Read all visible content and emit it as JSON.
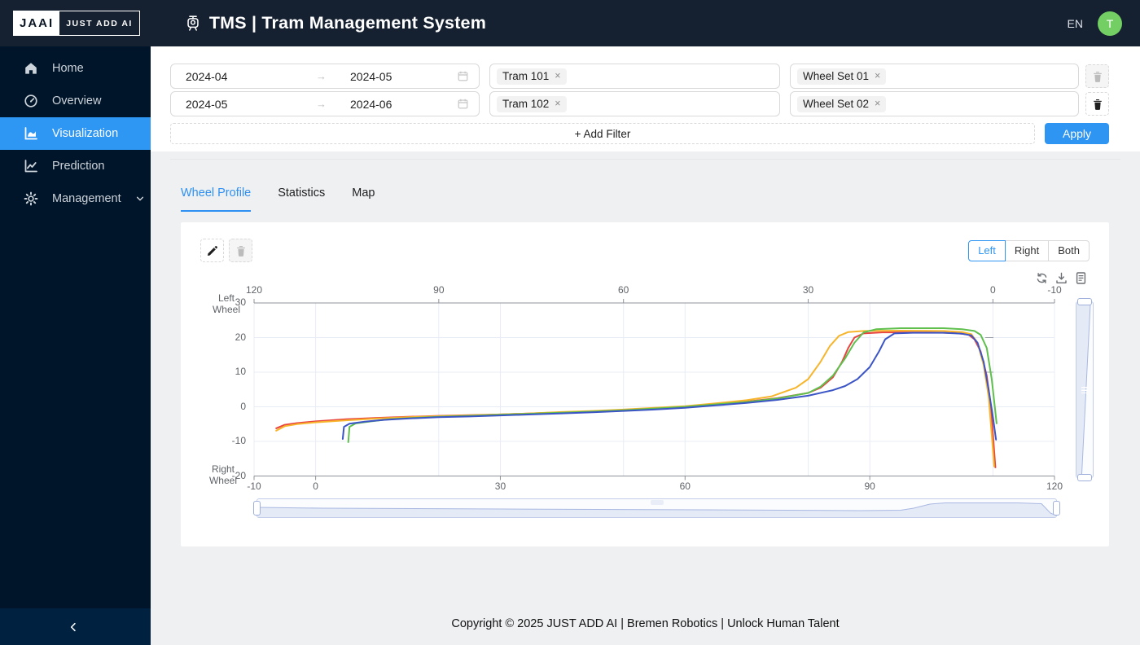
{
  "ui": {
    "close_glyph": "×",
    "range_arrow": "→"
  },
  "header": {
    "logo_primary": "JAAI",
    "logo_secondary": "JUST ADD AI",
    "title": "TMS | Tram Management System",
    "language": "EN",
    "avatar_initial": "T"
  },
  "sidebar": {
    "items": [
      {
        "label": "Home"
      },
      {
        "label": "Overview"
      },
      {
        "label": "Visualization",
        "active": true
      },
      {
        "label": "Prediction"
      },
      {
        "label": "Management",
        "has_submenu": true
      }
    ]
  },
  "filters": {
    "rows": [
      {
        "date_start": "2024-04",
        "date_end": "2024-05",
        "tram": "Tram 101",
        "wheel_set": "Wheel Set 01",
        "delete_enabled": false
      },
      {
        "date_start": "2024-05",
        "date_end": "2024-06",
        "tram": "Tram 102",
        "wheel_set": "Wheel Set 02",
        "delete_enabled": true
      }
    ],
    "add_filter": "+ Add Filter",
    "apply": "Apply"
  },
  "tabs": [
    {
      "label": "Wheel Profile",
      "active": true
    },
    {
      "label": "Statistics"
    },
    {
      "label": "Map"
    }
  ],
  "chart": {
    "side_options": [
      "Left",
      "Right",
      "Both"
    ],
    "selected_side": "Left",
    "left_wheel_label": "Left\nWheel",
    "right_wheel_label": "Right\nWheel",
    "accent_color": "#2e95f3"
  },
  "chart_data": {
    "type": "line",
    "title": "Wheel Profile",
    "grid": true,
    "x_axis_bottom": {
      "ticks": [
        -10,
        0,
        30,
        60,
        90,
        120
      ],
      "range": [
        -10,
        120
      ]
    },
    "x_axis_top": {
      "ticks": [
        120,
        90,
        60,
        30,
        0,
        -10
      ],
      "range": [
        120,
        -10
      ],
      "reversed": true
    },
    "y_axis": {
      "ticks": [
        30,
        20,
        10,
        0,
        -10,
        -20
      ],
      "range": [
        -20,
        30
      ]
    },
    "series": [
      {
        "name": "profile-red",
        "color": "#e8433f",
        "points": [
          [
            -6.4,
            -6.2
          ],
          [
            -5,
            -5.2
          ],
          [
            -3,
            -4.7
          ],
          [
            0,
            -4.2
          ],
          [
            5,
            -3.6
          ],
          [
            10,
            -3.2
          ],
          [
            15,
            -2.9
          ],
          [
            20,
            -2.6
          ],
          [
            25,
            -2.4
          ],
          [
            30,
            -2.2
          ],
          [
            35,
            -1.9
          ],
          [
            40,
            -1.6
          ],
          [
            45,
            -1.3
          ],
          [
            50,
            -0.9
          ],
          [
            55,
            -0.4
          ],
          [
            60,
            0.1
          ],
          [
            65,
            0.8
          ],
          [
            70,
            1.5
          ],
          [
            75,
            2.5
          ],
          [
            80,
            4.0
          ],
          [
            82,
            5.5
          ],
          [
            84,
            8.5
          ],
          [
            85.5,
            13
          ],
          [
            86.5,
            17
          ],
          [
            87.5,
            20
          ],
          [
            89,
            21.2
          ],
          [
            92,
            21.5
          ],
          [
            100,
            21.5
          ],
          [
            104,
            21.3
          ],
          [
            106,
            20.9
          ],
          [
            107,
            19.5
          ],
          [
            108,
            16
          ],
          [
            109,
            9
          ],
          [
            109.6,
            1
          ],
          [
            110,
            -8
          ],
          [
            110.4,
            -17.5
          ]
        ]
      },
      {
        "name": "profile-orange",
        "color": "#f7b52c",
        "points": [
          [
            -6.4,
            -6.9
          ],
          [
            -5,
            -5.6
          ],
          [
            -3,
            -5.0
          ],
          [
            0,
            -4.5
          ],
          [
            5,
            -3.9
          ],
          [
            10,
            -3.4
          ],
          [
            15,
            -3.0
          ],
          [
            20,
            -2.7
          ],
          [
            25,
            -2.5
          ],
          [
            30,
            -2.2
          ],
          [
            35,
            -1.9
          ],
          [
            40,
            -1.5
          ],
          [
            45,
            -1.2
          ],
          [
            50,
            -0.8
          ],
          [
            55,
            -0.3
          ],
          [
            60,
            0.2
          ],
          [
            65,
            1.0
          ],
          [
            70,
            1.9
          ],
          [
            74,
            3.0
          ],
          [
            78,
            5.5
          ],
          [
            80,
            8.0
          ],
          [
            82,
            13
          ],
          [
            83.5,
            17.5
          ],
          [
            85,
            20.5
          ],
          [
            86.5,
            21.6
          ],
          [
            89,
            21.9
          ],
          [
            95,
            22.0
          ],
          [
            102,
            21.9
          ],
          [
            105,
            21.6
          ],
          [
            106.5,
            21.0
          ],
          [
            107.5,
            18.5
          ],
          [
            108.5,
            12
          ],
          [
            109.3,
            3
          ],
          [
            109.8,
            -8
          ],
          [
            110.2,
            -17.2
          ]
        ]
      },
      {
        "name": "profile-green",
        "color": "#5fc04e",
        "points": [
          [
            5.3,
            -10.2
          ],
          [
            5.5,
            -5.8
          ],
          [
            6.5,
            -4.8
          ],
          [
            9,
            -4.2
          ],
          [
            12,
            -3.6
          ],
          [
            16,
            -3.2
          ],
          [
            20,
            -2.9
          ],
          [
            25,
            -2.6
          ],
          [
            30,
            -2.3
          ],
          [
            35,
            -2.0
          ],
          [
            40,
            -1.7
          ],
          [
            45,
            -1.4
          ],
          [
            50,
            -1.0
          ],
          [
            55,
            -0.5
          ],
          [
            60,
            0.0
          ],
          [
            65,
            0.7
          ],
          [
            70,
            1.4
          ],
          [
            75,
            2.4
          ],
          [
            80,
            4.0
          ],
          [
            82,
            5.8
          ],
          [
            84,
            9.0
          ],
          [
            86,
            14
          ],
          [
            87.5,
            18.5
          ],
          [
            89,
            21.5
          ],
          [
            91,
            22.4
          ],
          [
            95,
            22.7
          ],
          [
            102,
            22.7
          ],
          [
            105,
            22.4
          ],
          [
            107,
            21.9
          ],
          [
            108,
            20.8
          ],
          [
            109,
            17
          ],
          [
            109.8,
            8
          ],
          [
            110.3,
            0
          ],
          [
            110.6,
            -4.8
          ]
        ]
      },
      {
        "name": "profile-blue",
        "color": "#3c55c6",
        "points": [
          [
            4.4,
            -9.3
          ],
          [
            4.6,
            -5.8
          ],
          [
            5.5,
            -4.9
          ],
          [
            8,
            -4.3
          ],
          [
            11,
            -3.8
          ],
          [
            15,
            -3.4
          ],
          [
            20,
            -3.0
          ],
          [
            25,
            -2.8
          ],
          [
            30,
            -2.5
          ],
          [
            35,
            -2.2
          ],
          [
            40,
            -1.9
          ],
          [
            45,
            -1.6
          ],
          [
            50,
            -1.2
          ],
          [
            55,
            -0.8
          ],
          [
            60,
            -0.3
          ],
          [
            65,
            0.4
          ],
          [
            70,
            1.1
          ],
          [
            75,
            2.0
          ],
          [
            80,
            3.2
          ],
          [
            84,
            4.8
          ],
          [
            86,
            6.0
          ],
          [
            88,
            8.0
          ],
          [
            90,
            11.5
          ],
          [
            91.5,
            16
          ],
          [
            92.5,
            19.5
          ],
          [
            94,
            21.2
          ],
          [
            97,
            21.4
          ],
          [
            102,
            21.4
          ],
          [
            105,
            21.1
          ],
          [
            106.5,
            20.6
          ],
          [
            107.5,
            18.5
          ],
          [
            108.5,
            13
          ],
          [
            109.3,
            5
          ],
          [
            110,
            -3
          ],
          [
            110.5,
            -9.5
          ]
        ]
      }
    ]
  },
  "footer": {
    "copyright": "Copyright © 2025 JUST ADD AI | Bremen Robotics | Unlock Human Talent"
  }
}
